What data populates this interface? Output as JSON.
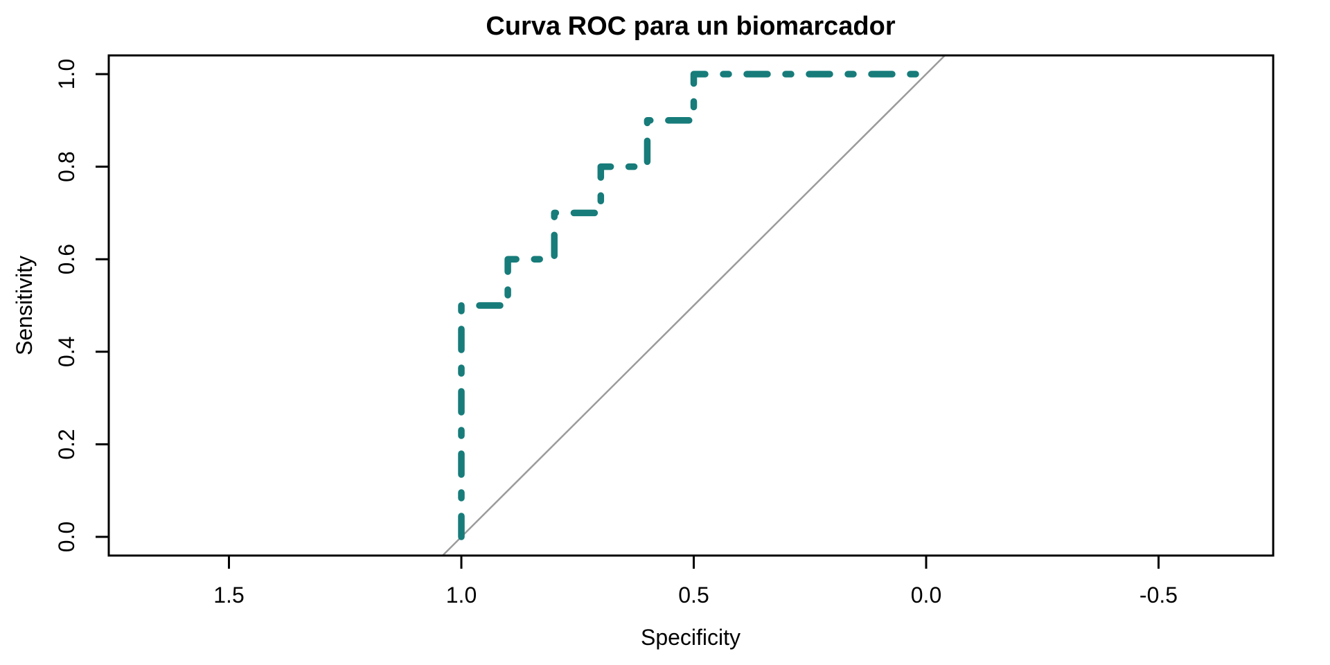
{
  "figure": {
    "background_color": "#ffffff",
    "frame_color": "#000000"
  },
  "chart_data": {
    "type": "line",
    "subtype": "roc-step-curve",
    "title": "Curva ROC para un biomarcador",
    "xlabel": "Specificity",
    "ylabel": "Sensitivity",
    "grid": false,
    "legend": "none",
    "x_axis": {
      "reversed": true,
      "tick_labels": [
        "1.5",
        "1.0",
        "0.5",
        "0.0",
        "-0.5"
      ],
      "tick_values": [
        1.5,
        1.0,
        0.5,
        0.0,
        -0.5
      ],
      "range_shown": [
        1.76,
        -0.74
      ]
    },
    "y_axis": {
      "tick_labels": [
        "0.0",
        "0.2",
        "0.4",
        "0.6",
        "0.8",
        "1.0"
      ],
      "tick_values": [
        0.0,
        0.2,
        0.4,
        0.6,
        0.8,
        1.0
      ],
      "range_shown": [
        -0.04,
        1.04
      ]
    },
    "series": [
      {
        "name": "roc-curve",
        "color": "#177c7a",
        "line_style": "dotdash",
        "line_width": 9.5,
        "points": [
          [
            1.0,
            0.0
          ],
          [
            1.0,
            0.5
          ],
          [
            0.9,
            0.5
          ],
          [
            0.9,
            0.6
          ],
          [
            0.8,
            0.6
          ],
          [
            0.8,
            0.7
          ],
          [
            0.7,
            0.7
          ],
          [
            0.7,
            0.8
          ],
          [
            0.6,
            0.8
          ],
          [
            0.6,
            0.9
          ],
          [
            0.5,
            0.9
          ],
          [
            0.5,
            1.0
          ],
          [
            0.0,
            1.0
          ]
        ]
      },
      {
        "name": "chance-diagonal",
        "color": "#9b9b9b",
        "line_style": "solid",
        "line_width": 2.5,
        "points": [
          [
            1.04,
            -0.04
          ],
          [
            -0.04,
            1.04
          ]
        ]
      }
    ]
  }
}
